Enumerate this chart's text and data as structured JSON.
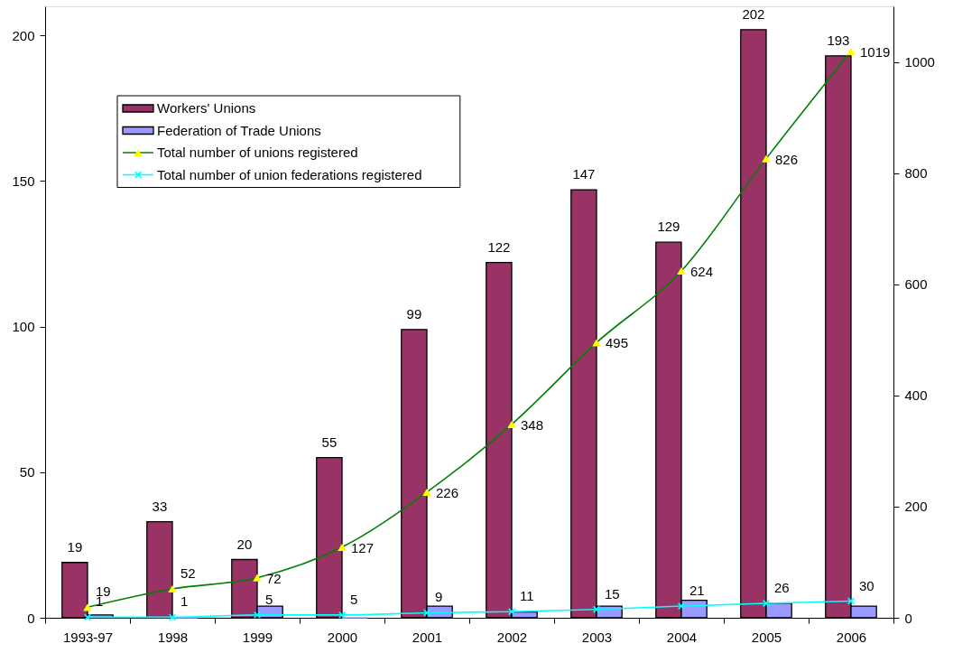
{
  "chart_data": {
    "type": "bar",
    "categories": [
      "1993-97",
      "1998",
      "1999",
      "2000",
      "2001",
      "2002",
      "2003",
      "2004",
      "2005",
      "2006"
    ],
    "series": [
      {
        "name": "Workers' Unions",
        "color": "#993366",
        "values": [
          19,
          33,
          20,
          55,
          99,
          122,
          147,
          129,
          202,
          193
        ],
        "data_labels": true
      },
      {
        "name": "Federation of Trade Unions",
        "color": "#9999ff",
        "values": [
          1,
          0,
          4,
          0,
          4,
          2,
          4,
          6,
          5,
          4
        ]
      },
      {
        "name": "Total number of unions registered",
        "type": "line",
        "axis": "y2",
        "color": "#008000",
        "colors": [
          "#ffff00",
          "#ffff00",
          "#ffff00",
          "#ffff00",
          "#ffff00",
          "#ffff00",
          "#ffff00",
          "#ffff00",
          "#ffff00",
          "#ffff00"
        ],
        "marker": "triangle",
        "values": [
          19,
          52,
          72,
          127,
          226,
          348,
          495,
          624,
          826,
          1019
        ],
        "data_labels": true
      },
      {
        "name": "Total number of union federations registered",
        "type": "line",
        "axis": "y2",
        "color": "#00ffff",
        "marker": "cross",
        "values": [
          1,
          1,
          5,
          5,
          9,
          11,
          15,
          21,
          26,
          30
        ],
        "data_labels": true
      }
    ],
    "ylim": [
      0,
      210
    ],
    "yticks": [
      0,
      50,
      100,
      150,
      200
    ],
    "y2lim": [
      0,
      1100
    ],
    "y2ticks": [
      0,
      200,
      400,
      600,
      800,
      1000
    ],
    "legend": "top left",
    "line_style": "solid"
  }
}
